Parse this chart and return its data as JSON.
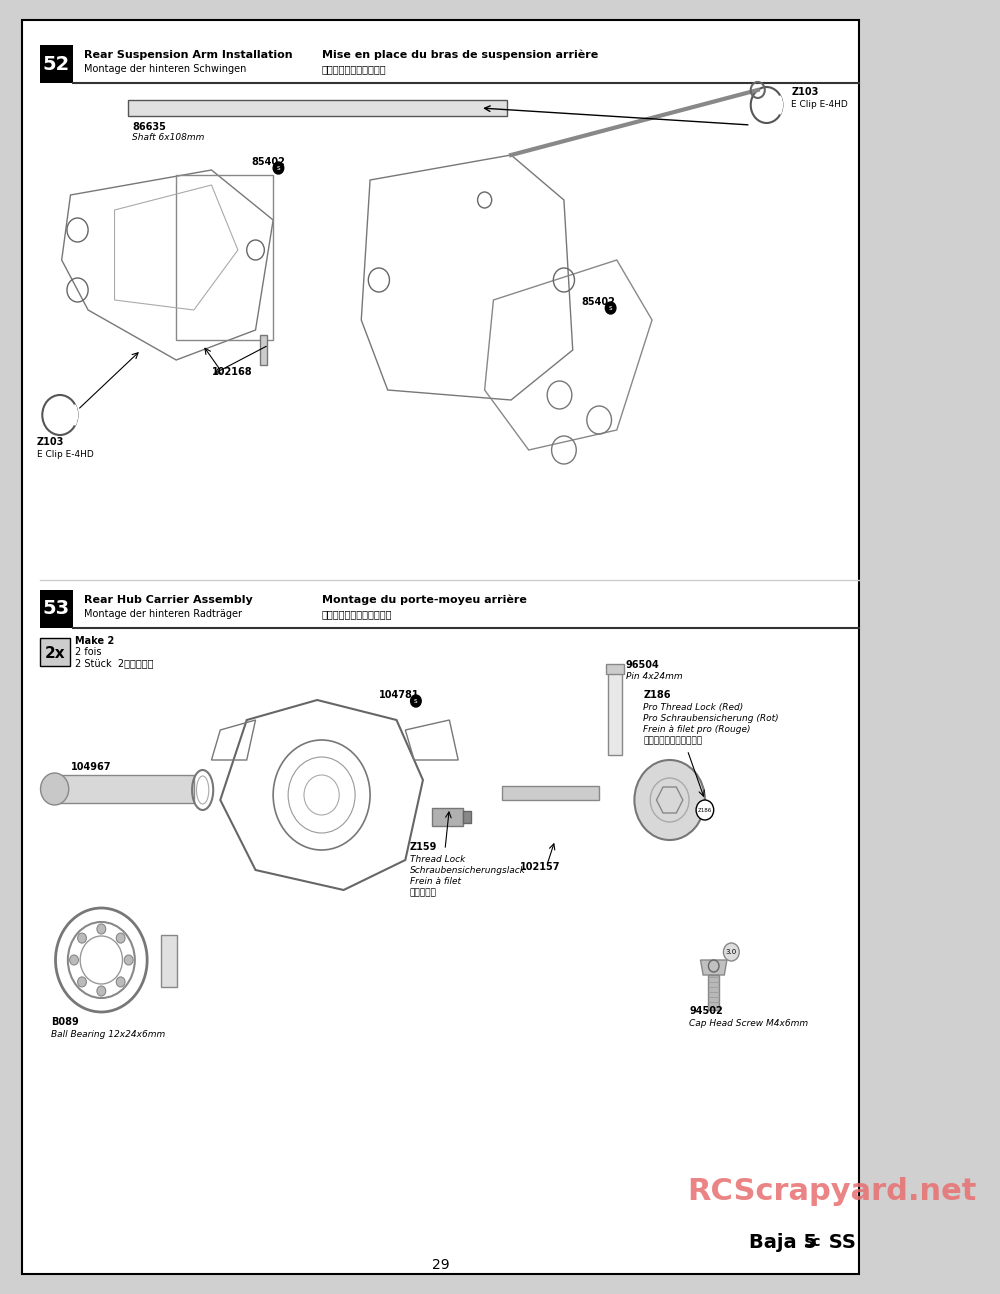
{
  "page_bg": "#d0d0d0",
  "content_bg": "#ffffff",
  "border_color": "#000000",
  "page_number": "29",
  "watermark": "RCScrapyard.net",
  "watermark_color": "#e87070",
  "logo_text": "Baja 5sc SS",
  "logo_color": "#000000",
  "step52": {
    "number": "52",
    "title_en": "Rear Suspension Arm Installation",
    "title_fr": "Mise en place du bras de suspension arrière",
    "title_de": "Montage der hinteren Schwingen",
    "title_jp": "リアサスアームの取付け"
  },
  "step53": {
    "number": "53",
    "title_en": "Rear Hub Carrier Assembly",
    "title_fr": "Montage du porte-moyeu arrière",
    "title_de": "Montage der hinteren Radträger",
    "title_jp": "リアハブキャリアの組立て",
    "make2_en": "Make 2",
    "make2_fr": "2 fois",
    "make2_de": "2 Stück",
    "make2_jp": "2個作ります"
  }
}
